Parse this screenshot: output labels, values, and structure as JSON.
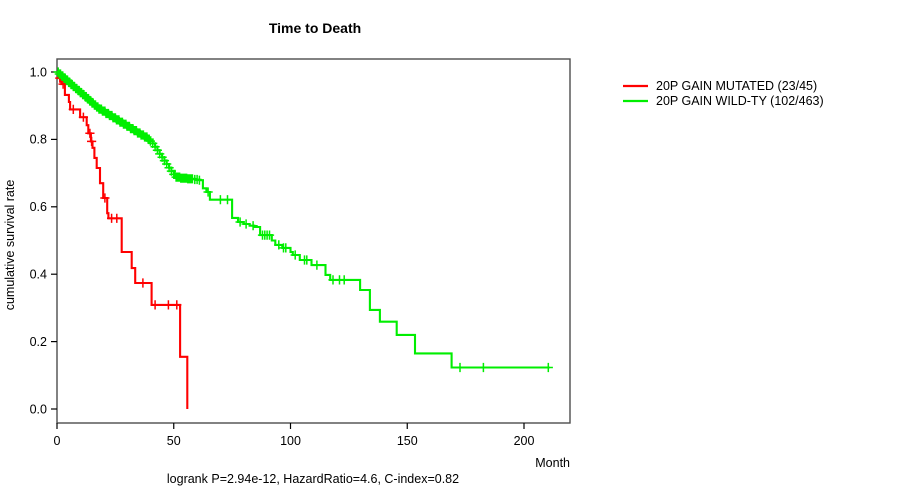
{
  "chart_data": {
    "type": "line",
    "subtype": "kaplan-meier-step",
    "title": "Time to Death",
    "xlabel": "Month",
    "ylabel": "cumulative survival rate",
    "annotation": "logrank P=2.94e-12, HazardRatio=4.6, C-index=0.82",
    "xlim": [
      0,
      220
    ],
    "ylim": [
      0.0,
      1.0
    ],
    "xticks": [
      0,
      50,
      100,
      150,
      200
    ],
    "yticks": [
      0.0,
      0.2,
      0.4,
      0.6,
      0.8,
      1.0
    ],
    "grid": false,
    "legend_position": "right-outside",
    "series": [
      {
        "name": "20P GAIN MUTATED (23/45)",
        "color": "#FF0000",
        "end_month": 55.8,
        "steps": [
          [
            0,
            1.0
          ],
          [
            0.6,
            0.982
          ],
          [
            1.9,
            0.964
          ],
          [
            3.4,
            0.932
          ],
          [
            5.1,
            0.911
          ],
          [
            5.6,
            0.889
          ],
          [
            9.9,
            0.866
          ],
          [
            12.7,
            0.842
          ],
          [
            13.4,
            0.818
          ],
          [
            14.5,
            0.794
          ],
          [
            15.2,
            0.775
          ],
          [
            16.0,
            0.745
          ],
          [
            17.0,
            0.715
          ],
          [
            18.4,
            0.67
          ],
          [
            19.8,
            0.626
          ],
          [
            21.5,
            0.581
          ],
          [
            22.0,
            0.566
          ],
          [
            27.7,
            0.466
          ],
          [
            32.0,
            0.418
          ],
          [
            33.5,
            0.374
          ],
          [
            40.5,
            0.309
          ],
          [
            52.7,
            0.155
          ],
          [
            55.8,
            0.0
          ]
        ],
        "censor_months": [
          1.2,
          2.6,
          7.0,
          11.3,
          14.1,
          14.8,
          20.5,
          23.4,
          25.6,
          36.8,
          42.0,
          47.7,
          51.3
        ]
      },
      {
        "name": "20P GAIN WILD-TY (102/463)",
        "color": "#00EE00",
        "end_month": 211,
        "steps": [
          [
            0,
            1.0
          ],
          [
            1,
            0.994
          ],
          [
            2,
            0.988
          ],
          [
            3,
            0.982
          ],
          [
            4,
            0.976
          ],
          [
            5,
            0.969
          ],
          [
            6,
            0.963
          ],
          [
            7,
            0.957
          ],
          [
            8,
            0.951
          ],
          [
            9,
            0.945
          ],
          [
            10,
            0.939
          ],
          [
            11,
            0.933
          ],
          [
            12,
            0.927
          ],
          [
            13,
            0.921
          ],
          [
            14,
            0.914
          ],
          [
            15,
            0.908
          ],
          [
            16,
            0.902
          ],
          [
            17,
            0.896
          ],
          [
            18,
            0.89
          ],
          [
            19.5,
            0.884
          ],
          [
            21,
            0.877
          ],
          [
            22.5,
            0.871
          ],
          [
            24,
            0.864
          ],
          [
            25.5,
            0.858
          ],
          [
            27,
            0.851
          ],
          [
            28.5,
            0.845
          ],
          [
            30,
            0.839
          ],
          [
            31.5,
            0.832
          ],
          [
            33,
            0.826
          ],
          [
            34.5,
            0.819
          ],
          [
            36,
            0.813
          ],
          [
            37.5,
            0.807
          ],
          [
            39,
            0.801
          ],
          [
            40,
            0.795
          ],
          [
            41,
            0.788
          ],
          [
            42,
            0.778
          ],
          [
            43,
            0.768
          ],
          [
            44,
            0.757
          ],
          [
            45,
            0.747
          ],
          [
            46,
            0.737
          ],
          [
            47,
            0.727
          ],
          [
            48,
            0.716
          ],
          [
            49,
            0.706
          ],
          [
            50,
            0.696
          ],
          [
            51,
            0.688
          ],
          [
            53,
            0.685
          ],
          [
            56,
            0.683
          ],
          [
            59,
            0.681
          ],
          [
            61,
            0.679
          ],
          [
            62.5,
            0.655
          ],
          [
            64,
            0.644
          ],
          [
            65.5,
            0.621
          ],
          [
            75,
            0.567
          ],
          [
            77.5,
            0.555
          ],
          [
            80,
            0.549
          ],
          [
            82.5,
            0.544
          ],
          [
            84.5,
            0.54
          ],
          [
            87,
            0.516
          ],
          [
            92,
            0.5
          ],
          [
            93.5,
            0.487
          ],
          [
            96.5,
            0.478
          ],
          [
            100,
            0.466
          ],
          [
            101,
            0.457
          ],
          [
            104,
            0.442
          ],
          [
            109,
            0.427
          ],
          [
            115,
            0.398
          ],
          [
            117,
            0.383
          ],
          [
            129.8,
            0.353
          ],
          [
            134,
            0.294
          ],
          [
            138.3,
            0.259
          ],
          [
            145.5,
            0.22
          ],
          [
            153.3,
            0.165
          ],
          [
            169,
            0.123
          ]
        ],
        "censor_months": [
          0.5,
          1,
          1.5,
          2,
          2.5,
          3,
          3.5,
          4,
          4.5,
          5,
          5.5,
          6,
          6.5,
          7,
          7.5,
          8,
          8.5,
          9,
          9.5,
          10,
          10.5,
          11,
          11.5,
          12,
          12.5,
          13,
          13.5,
          14,
          14.5,
          15,
          15.5,
          16,
          16.5,
          17,
          17.5,
          18,
          18.5,
          19,
          19.5,
          20,
          20.5,
          21,
          21.5,
          22,
          22.5,
          23,
          23.5,
          24,
          24.5,
          25,
          25.5,
          26,
          26.5,
          27,
          27.5,
          28,
          28.5,
          29,
          29.5,
          30,
          30.5,
          31,
          31.5,
          32,
          32.5,
          33,
          33.5,
          34,
          34.5,
          35,
          35.5,
          36,
          36.5,
          37,
          37.5,
          38,
          38.5,
          39,
          39.5,
          40,
          41,
          42,
          43,
          44,
          45,
          46,
          47,
          48,
          49,
          50,
          50.5,
          51,
          51.5,
          52,
          52.5,
          53,
          53.5,
          54,
          54.5,
          55,
          55.5,
          56,
          56.5,
          57,
          57.5,
          58,
          59,
          60,
          61,
          64.7,
          70,
          73,
          78.4,
          81,
          84,
          88,
          89,
          90,
          91,
          95,
          97,
          98,
          102,
          106,
          107,
          111.3,
          118.2,
          121,
          123,
          172.6,
          182.6,
          210.4
        ]
      }
    ]
  }
}
